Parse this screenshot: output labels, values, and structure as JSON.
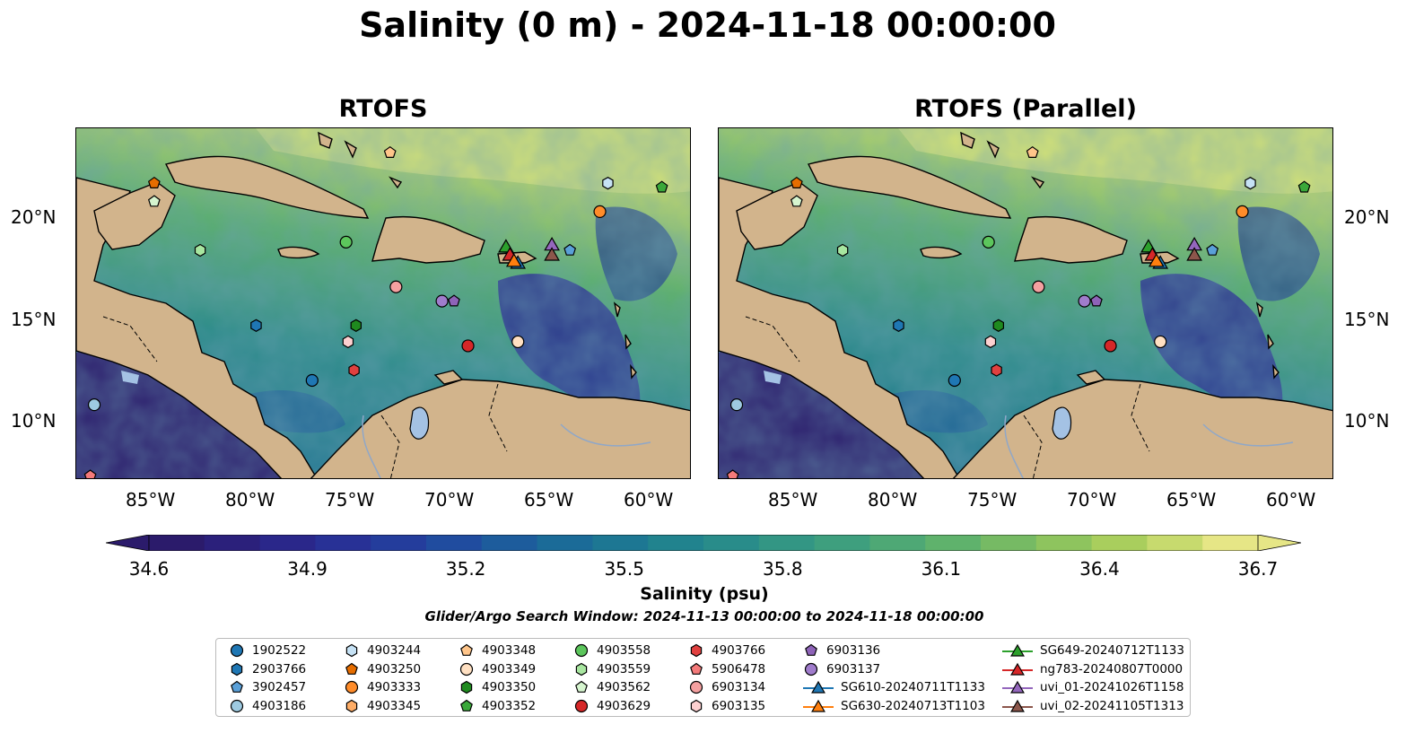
{
  "title": "Salinity (0 m) - 2024-11-18 00:00:00",
  "panels": [
    {
      "title": "RTOFS"
    },
    {
      "title": "RTOFS (Parallel)"
    }
  ],
  "lat_labels": [
    "20°N",
    "15°N",
    "10°N"
  ],
  "lon_labels": [
    "85°W",
    "80°W",
    "75°W",
    "70°W",
    "65°W",
    "60°W"
  ],
  "extent": {
    "lon": [
      -88.8,
      -58
    ],
    "lat": [
      7,
      24.3
    ]
  },
  "colorbar": {
    "label": "Salinity (psu)",
    "ticks": [
      "34.6",
      "34.9",
      "35.2",
      "35.5",
      "35.8",
      "36.1",
      "36.4",
      "36.7"
    ],
    "colors": [
      "#2b1b6b",
      "#2b2487",
      "#27359b",
      "#1f4f9f",
      "#1b6a98",
      "#1e7f90",
      "#2c9088",
      "#3fa07d",
      "#5bb06e",
      "#82bf5f",
      "#b0d15d",
      "#e6e686"
    ]
  },
  "colors": {
    "land": "#d2b48c",
    "lakes": "#a4c2e4",
    "ocean_fresh": "#2b1b6b"
  },
  "search_window": "Glider/Argo Search Window: 2024-11-13 00:00:00 to 2024-11-18 00:00:00",
  "legend": [
    {
      "label": "1902522",
      "marker": "circle",
      "color": "#1f77b4"
    },
    {
      "label": "2903766",
      "marker": "hexagon",
      "color": "#1f77b4"
    },
    {
      "label": "3902457",
      "marker": "pentagon",
      "color": "#5aa0d8"
    },
    {
      "label": "4903186",
      "marker": "circle",
      "color": "#9ecae1"
    },
    {
      "label": "4903244",
      "marker": "hexagon",
      "color": "#c6e2f5"
    },
    {
      "label": "4903250",
      "marker": "pentagon",
      "color": "#e66d00"
    },
    {
      "label": "4903333",
      "marker": "circle",
      "color": "#ff8c2a"
    },
    {
      "label": "4903345",
      "marker": "hexagon",
      "color": "#ffad66"
    },
    {
      "label": "4903348",
      "marker": "pentagon",
      "color": "#ffc58a"
    },
    {
      "label": "4903349",
      "marker": "circle",
      "color": "#ffe0c2"
    },
    {
      "label": "4903350",
      "marker": "hexagon",
      "color": "#1f8a1f"
    },
    {
      "label": "4903352",
      "marker": "pentagon",
      "color": "#3aa83a"
    },
    {
      "label": "4903558",
      "marker": "circle",
      "color": "#5cc65c"
    },
    {
      "label": "4903559",
      "marker": "hexagon",
      "color": "#a8e6a0"
    },
    {
      "label": "4903562",
      "marker": "pentagon",
      "color": "#d6f5cf"
    },
    {
      "label": "4903629",
      "marker": "circle",
      "color": "#d62728"
    },
    {
      "label": "4903766",
      "marker": "hexagon",
      "color": "#e0403f"
    },
    {
      "label": "5906478",
      "marker": "pentagon",
      "color": "#f47a7a"
    },
    {
      "label": "6903134",
      "marker": "circle",
      "color": "#f4a0a0"
    },
    {
      "label": "6903135",
      "marker": "hexagon",
      "color": "#fdd0d0"
    },
    {
      "label": "6903136",
      "marker": "pentagon",
      "color": "#8e63b8"
    },
    {
      "label": "6903137",
      "marker": "circle",
      "color": "#a07ccc"
    },
    {
      "label": "SG610-20240711T1133",
      "marker": "triangle-line",
      "color": "#1f77b4"
    },
    {
      "label": "SG630-20240713T1103",
      "marker": "triangle-line",
      "color": "#ff7f0e"
    },
    {
      "label": "SG649-20240712T1133",
      "marker": "triangle-line",
      "color": "#2ca02c"
    },
    {
      "label": "ng783-20240807T0000",
      "marker": "triangle-line",
      "color": "#d62728"
    },
    {
      "label": "uvi_01-20241026T1158",
      "marker": "triangle-line",
      "color": "#9467bd"
    },
    {
      "label": "uvi_02-20241105T1313",
      "marker": "triangle-line",
      "color": "#8c564b"
    }
  ],
  "floats": [
    {
      "id": "4903250",
      "lon": -84.9,
      "lat": 21.6
    },
    {
      "id": "4903562",
      "lon": -84.9,
      "lat": 20.7
    },
    {
      "id": "4903348",
      "lon": -73.1,
      "lat": 23.1
    },
    {
      "id": "4903244",
      "lon": -62.2,
      "lat": 21.6
    },
    {
      "id": "4903352",
      "lon": -59.5,
      "lat": 21.4
    },
    {
      "id": "4903333",
      "lon": -62.6,
      "lat": 20.2
    },
    {
      "id": "4903559",
      "lon": -82.6,
      "lat": 18.3
    },
    {
      "id": "4903558",
      "lon": -75.3,
      "lat": 18.7
    },
    {
      "id": "2903766",
      "lon": -79.8,
      "lat": 14.6
    },
    {
      "id": "6903134",
      "lon": -72.8,
      "lat": 16.5
    },
    {
      "id": "6903137",
      "lon": -70.5,
      "lat": 15.8
    },
    {
      "id": "6903136",
      "lon": -69.9,
      "lat": 15.8
    },
    {
      "id": "4903350",
      "lon": -74.8,
      "lat": 14.6
    },
    {
      "id": "6903135",
      "lon": -75.2,
      "lat": 13.8
    },
    {
      "id": "4903349",
      "lon": -66.7,
      "lat": 13.8
    },
    {
      "id": "4903629",
      "lon": -69.2,
      "lat": 13.6
    },
    {
      "id": "4903766",
      "lon": -74.9,
      "lat": 12.4
    },
    {
      "id": "1902522",
      "lon": -77.0,
      "lat": 11.9
    },
    {
      "id": "4903186",
      "lon": -87.9,
      "lat": 10.7
    },
    {
      "id": "5906478",
      "lon": -88.1,
      "lat": 7.2
    },
    {
      "id": "3902457",
      "lon": -64.1,
      "lat": 18.3
    }
  ],
  "gliders": [
    {
      "id": "SG649-20240712T1133",
      "lon": -67.3,
      "lat": 18.5
    },
    {
      "id": "ng783-20240807T0000",
      "lon": -67.1,
      "lat": 18.1
    },
    {
      "id": "SG610-20240711T1133",
      "lon": -66.7,
      "lat": 17.7
    },
    {
      "id": "SG630-20240713T1103",
      "lon": -66.9,
      "lat": 17.8
    },
    {
      "id": "uvi_01-20241026T1158",
      "lon": -65.0,
      "lat": 18.6
    },
    {
      "id": "uvi_02-20241105T1313",
      "lon": -65.0,
      "lat": 18.1
    }
  ]
}
